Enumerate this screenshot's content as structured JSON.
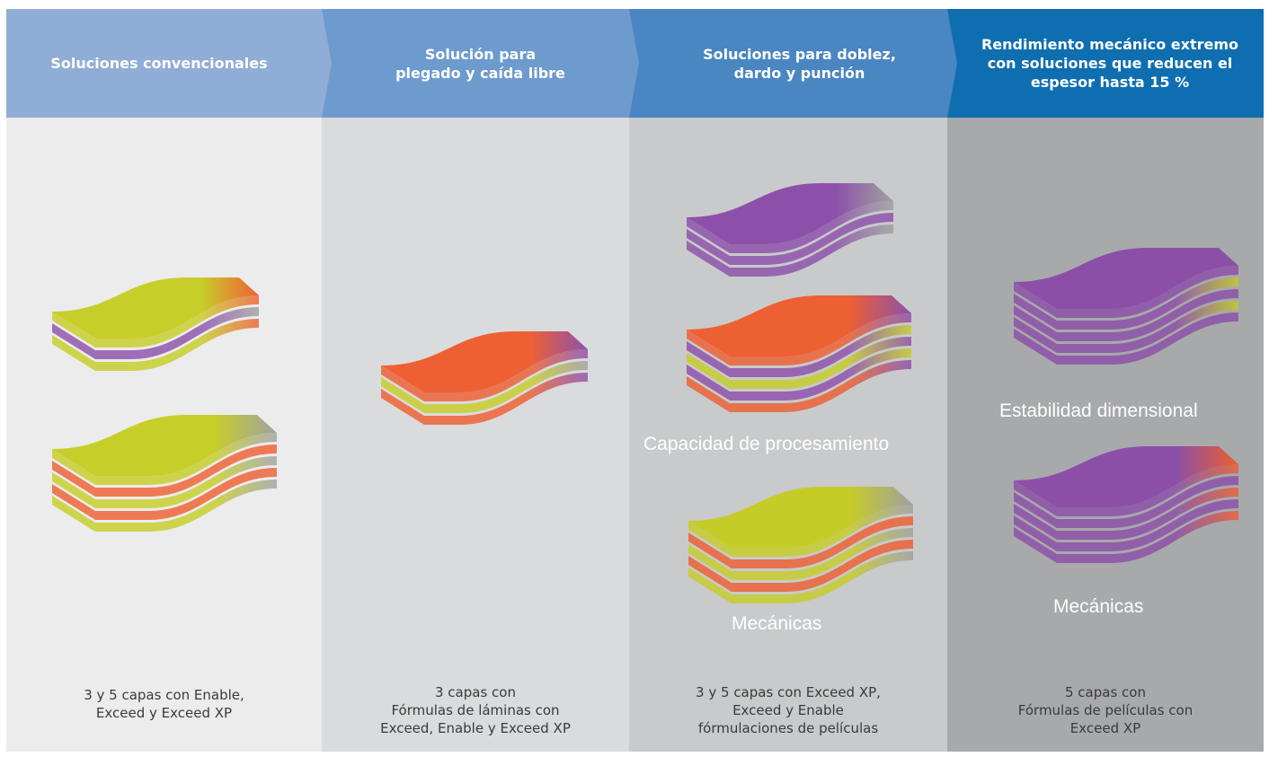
{
  "columns": [
    {
      "header": "Soluciones convencionales",
      "caption": "3 y 5 capas con Enable,\nExceed y Exceed XP",
      "stacks": [
        {
          "layers": [
            "lime",
            "purple",
            "lime"
          ],
          "end_colors": [
            "orange",
            "gray",
            "orange"
          ]
        },
        {
          "layers": [
            "lime",
            "orange",
            "lime",
            "orange",
            "lime"
          ],
          "end_colors": [
            "gray",
            "orange",
            "gray",
            "orange",
            "gray"
          ]
        }
      ]
    },
    {
      "header": "Solución para\nplegado y caída libre",
      "caption": "3 capas con\nFórmulas de láminas con\nExceed, Enable y Exceed XP",
      "stacks": [
        {
          "layers": [
            "orange",
            "lime",
            "orange"
          ],
          "end_colors": [
            "purple",
            "gray",
            "purple"
          ]
        }
      ]
    },
    {
      "header": "Soluciones para doblez,\ndardo y punción",
      "caption": "3 y 5 capas con Exceed XP,\nExceed y Enable\nfórmulaciones de películas",
      "labels": [
        "Capacidad de procesamiento",
        "Mecánicas"
      ],
      "stacks": [
        {
          "layers": [
            "purple",
            "purple",
            "purple"
          ],
          "end_colors": [
            "gray",
            "purple",
            "gray"
          ]
        },
        {
          "layers": [
            "orange",
            "purple",
            "lime",
            "purple",
            "orange"
          ],
          "end_colors": [
            "purple",
            "lime",
            "purple",
            "lime",
            "purple"
          ]
        },
        {
          "layers": [
            "lime",
            "orange",
            "lime",
            "orange",
            "lime"
          ],
          "end_colors": [
            "gray",
            "orange",
            "gray",
            "orange",
            "gray"
          ]
        }
      ]
    },
    {
      "header": "Rendimiento mecánico extremo\ncon soluciones que reducen el\nespesor hasta 15 %",
      "caption": "5 capas con\nFórmulas de películas con\nExceed XP",
      "labels": [
        "Estabilidad dimensional",
        "Mecánicas"
      ],
      "stacks": [
        {
          "layers": [
            "purple",
            "purple",
            "purple",
            "purple",
            "purple"
          ],
          "end_colors": [
            "purple",
            "lime",
            "purple",
            "lime",
            "purple"
          ]
        },
        {
          "layers": [
            "purple",
            "purple",
            "purple",
            "purple",
            "purple"
          ],
          "end_colors": [
            "orange",
            "purple",
            "orange",
            "purple",
            "orange"
          ]
        }
      ]
    }
  ],
  "palette": {
    "lime": "#c5cc1f",
    "orange": "#ef5a2a",
    "purple": "#8a4aa8",
    "gray": "#9e9e9e",
    "header_1": "#8fadd6",
    "header_2": "#6e9bcd",
    "header_3": "#4a86c1",
    "header_4": "#0f6eb0"
  }
}
